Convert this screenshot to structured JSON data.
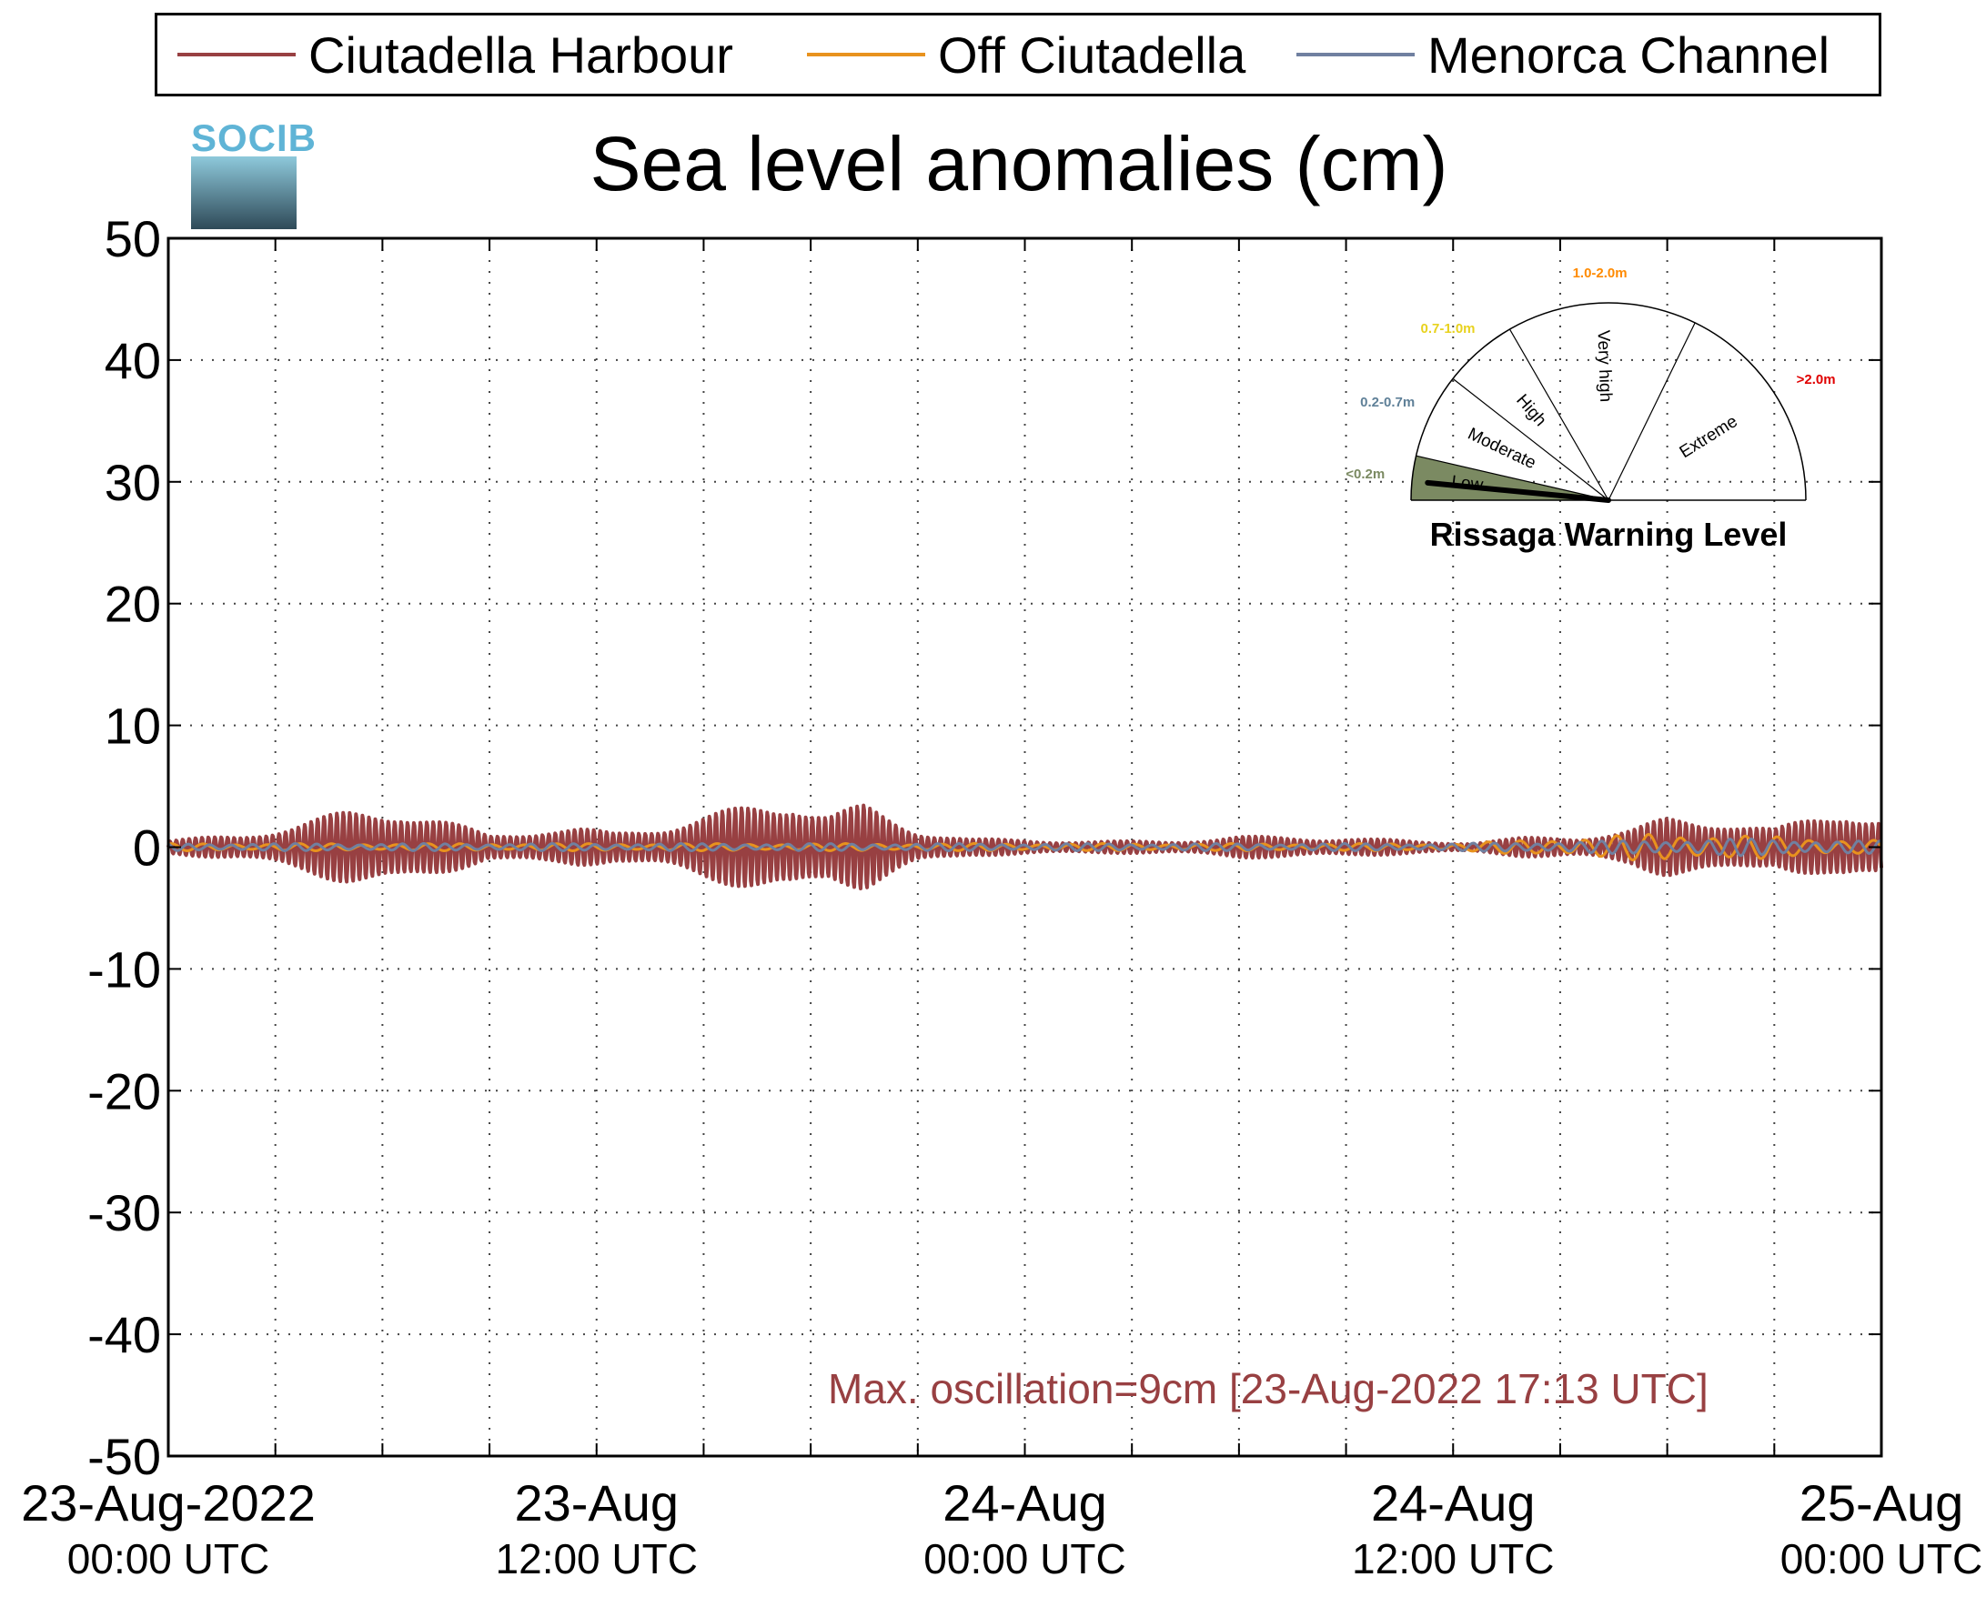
{
  "legend": {
    "items": [
      {
        "label": "Ciutadella Harbour",
        "color": "#984042"
      },
      {
        "label": "Off Ciutadella",
        "color": "#e8921e"
      },
      {
        "label": "Menorca Channel",
        "color": "#7080a0"
      }
    ]
  },
  "logo": {
    "text": "SOCIB"
  },
  "gauge": {
    "title": "Rissaga Warning Level",
    "sectors": [
      {
        "name": "Low",
        "range": "<0.2m",
        "color": "#7b8a62"
      },
      {
        "name": "Moderate",
        "range": "0.2-0.7m",
        "color": "#5f8098"
      },
      {
        "name": "High",
        "range": "0.7-1.0m",
        "color": "#e8d21e"
      },
      {
        "name": "Very high",
        "range": "1.0-2.0m",
        "color": "#ff8a00"
      },
      {
        "name": "Extreme",
        "range": ">2.0m",
        "color": "#e00000"
      }
    ],
    "active": "Low",
    "active_color": "#7b8a62"
  },
  "chart_data": {
    "type": "line",
    "title": "Sea level anomalies (cm)",
    "xlabel": "",
    "ylabel": "",
    "ylim": [
      -50,
      50
    ],
    "yticks": [
      -50,
      -40,
      -30,
      -20,
      -10,
      0,
      10,
      20,
      30,
      40,
      50
    ],
    "x_unit": "hours since 23-Aug-2022 00:00 UTC",
    "xlim": [
      0,
      48
    ],
    "xticks": [
      0,
      12,
      24,
      36,
      48
    ],
    "xtick_labels": [
      {
        "line1": "23-Aug-2022",
        "line2": "00:00 UTC"
      },
      {
        "line1": "23-Aug",
        "line2": "12:00 UTC"
      },
      {
        "line1": "24-Aug",
        "line2": "00:00 UTC"
      },
      {
        "line1": "24-Aug",
        "line2": "12:00 UTC"
      },
      {
        "line1": "25-Aug",
        "line2": "00:00 UTC"
      }
    ],
    "grid": true,
    "legend_position": "top",
    "series": [
      {
        "name": "Ciutadella Harbour",
        "color": "#984042",
        "envelope_x": [
          0,
          2,
          3.5,
          5,
          6.5,
          7.5,
          9,
          10.5,
          11.5,
          12.5,
          14,
          15.5,
          17,
          17.5,
          18.5,
          19.5,
          21,
          22.5,
          24,
          26,
          28,
          30,
          33,
          35,
          36.5,
          38,
          39.5,
          41,
          42,
          43.5,
          45,
          46,
          47,
          48
        ],
        "envelope_amp": [
          0.6,
          1.0,
          2.0,
          3.0,
          3.5,
          2.5,
          1.0,
          1.6,
          1.6,
          1.2,
          2.0,
          3.0,
          4.0,
          4.5,
          3.0,
          3.5,
          1.5,
          0.7,
          0.6,
          0.5,
          0.5,
          0.9,
          0.8,
          0.5,
          0.4,
          0.8,
          0.9,
          1.5,
          2.5,
          2.5,
          1.5,
          2.5,
          3.5,
          2.5
        ]
      },
      {
        "name": "Off Ciutadella",
        "color": "#e8921e",
        "envelope_x": [
          0,
          12,
          24,
          36,
          38,
          42,
          44,
          46,
          48
        ],
        "envelope_amp": [
          0.3,
          0.3,
          0.3,
          0.3,
          0.6,
          1.2,
          1.0,
          0.8,
          0.6
        ]
      },
      {
        "name": "Menorca Channel",
        "color": "#7080a0",
        "envelope_x": [
          0,
          12,
          24,
          36,
          40,
          44,
          48
        ],
        "envelope_amp": [
          0.3,
          0.3,
          0.3,
          0.3,
          0.5,
          0.7,
          0.5
        ]
      }
    ],
    "annotations": [
      "Max. oscillation=9cm [23-Aug-2022 17:13 UTC]"
    ]
  }
}
